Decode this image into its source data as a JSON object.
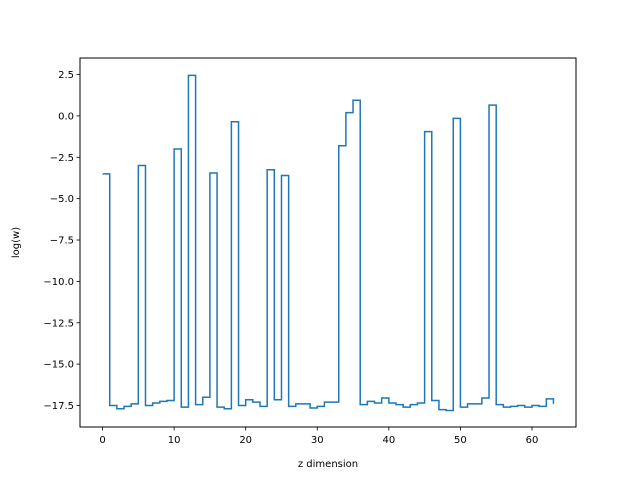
{
  "chart_data": {
    "type": "line",
    "drawstyle": "steps-post",
    "title": "",
    "xlabel": "z dimension",
    "ylabel": "log(w)",
    "xlim": [
      -3.15,
      66.15
    ],
    "ylim": [
      -18.8,
      3.5
    ],
    "xticks": [
      0,
      10,
      20,
      30,
      40,
      50,
      60
    ],
    "xtick_labels": [
      "0",
      "10",
      "20",
      "30",
      "40",
      "50",
      "60"
    ],
    "yticks": [
      2.5,
      0.0,
      -2.5,
      -5.0,
      -7.5,
      -10.0,
      -12.5,
      -15.0,
      -17.5
    ],
    "ytick_labels": [
      "2.5",
      "0.0",
      "−2.5",
      "−5.0",
      "−7.5",
      "−10.0",
      "−12.5",
      "−15.0",
      "−17.5"
    ],
    "grid": false,
    "color": "#1f77b4",
    "x": [
      0,
      1,
      2,
      3,
      4,
      5,
      6,
      7,
      8,
      9,
      10,
      11,
      12,
      13,
      14,
      15,
      16,
      17,
      18,
      19,
      20,
      21,
      22,
      23,
      24,
      25,
      26,
      27,
      28,
      29,
      30,
      31,
      32,
      33,
      34,
      35,
      36,
      37,
      38,
      39,
      40,
      41,
      42,
      43,
      44,
      45,
      46,
      47,
      48,
      49,
      50,
      51,
      52,
      53,
      54,
      55,
      56,
      57,
      58,
      59,
      60,
      61,
      62,
      63
    ],
    "y": [
      -3.5,
      -17.5,
      -17.7,
      -17.55,
      -17.4,
      -3.0,
      -17.5,
      -17.35,
      -17.25,
      -17.2,
      -2.0,
      -17.6,
      2.45,
      -17.45,
      -17.0,
      -3.45,
      -17.6,
      -17.7,
      -0.35,
      -17.5,
      -17.15,
      -17.3,
      -17.55,
      -3.25,
      -17.15,
      -3.6,
      -17.55,
      -17.4,
      -17.4,
      -17.65,
      -17.55,
      -17.3,
      -17.3,
      -1.8,
      0.2,
      0.95,
      -17.45,
      -17.25,
      -17.35,
      -17.05,
      -17.35,
      -17.45,
      -17.6,
      -17.45,
      -17.35,
      -0.95,
      -17.2,
      -17.75,
      -17.8,
      -0.15,
      -17.6,
      -17.4,
      -17.4,
      -17.05,
      0.65,
      -17.45,
      -17.6,
      -17.55,
      -17.5,
      -17.6,
      -17.5,
      -17.55,
      -17.1,
      -17.4
    ]
  }
}
